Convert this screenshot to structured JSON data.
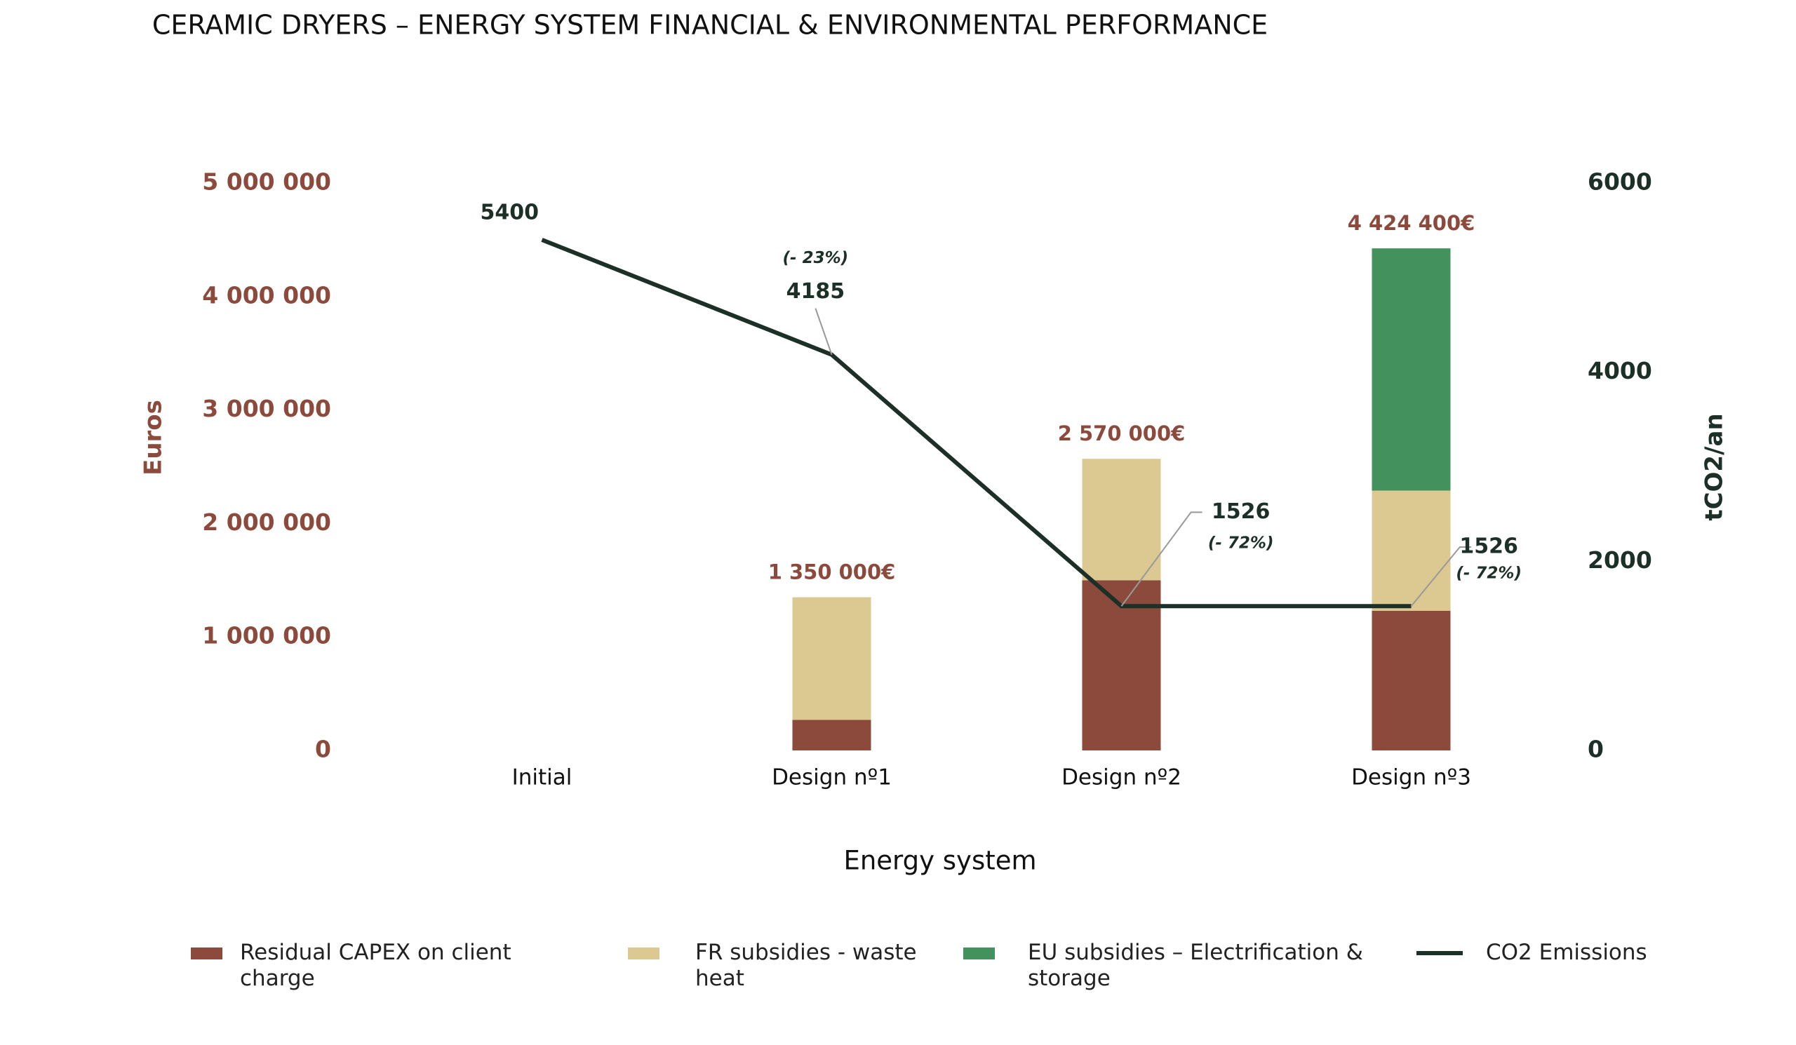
{
  "chart_data": {
    "type": "bar-line",
    "title": "CERAMIC DRYERS – ENERGY SYSTEM FINANCIAL & ENVIRONMENTAL PERFORMANCE",
    "x_label": "Energy system",
    "y_label": "Euros",
    "y2_label": "tCO2/an",
    "categories": [
      "Initial",
      "Design nº1",
      "Design nº2",
      "Design nº3"
    ],
    "ylim": [
      0,
      5000000
    ],
    "yticks": [
      {
        "value": 0,
        "label": "0"
      },
      {
        "value": 1000000,
        "label": "1 000 000"
      },
      {
        "value": 2000000,
        "label": "2 000 000"
      },
      {
        "value": 3000000,
        "label": "3 000 000"
      },
      {
        "value": 4000000,
        "label": "4 000 000"
      },
      {
        "value": 5000000,
        "label": "5 000 000"
      }
    ],
    "y2lim": [
      0,
      6000
    ],
    "y2ticks": [
      0,
      2000,
      4000,
      6000
    ],
    "series": [
      {
        "name": "Residual CAPEX on client charge",
        "color": "#8b4a3c",
        "values": [
          null,
          270000,
          1500000,
          1230000
        ]
      },
      {
        "name": "FR subsidies - waste heat",
        "color": "#dcc891",
        "values": [
          null,
          1080000,
          1070000,
          1060000
        ]
      },
      {
        "name": "EU subsidies – Electrification & storage",
        "color": "#43915c",
        "values": [
          null,
          null,
          null,
          2134400
        ]
      },
      {
        "name": "CO2 Emissions",
        "color": "#1d3028",
        "axis": "y2",
        "line": true,
        "values": [
          5400,
          4185,
          1526,
          1526
        ],
        "annotations": [
          null,
          "(- 23%)",
          "(- 72%)",
          "(- 72%)"
        ]
      }
    ],
    "totals": [
      null,
      1350000,
      2570000,
      4424400
    ],
    "total_labels": [
      null,
      "1 350 000€",
      "2 570 000€",
      "4 424 400€"
    ]
  }
}
